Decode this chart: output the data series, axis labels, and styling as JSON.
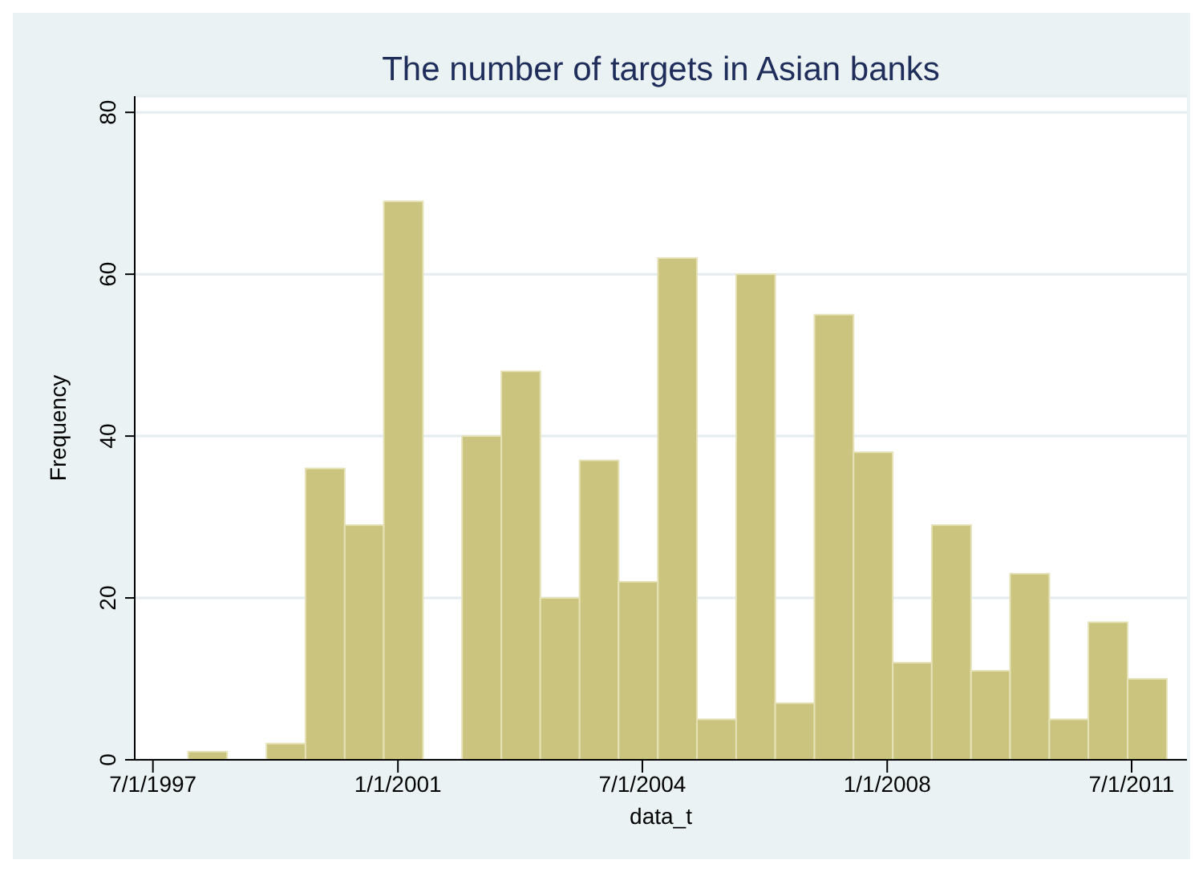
{
  "chart_data": {
    "type": "histogram",
    "title": "The number of targets in Asian banks",
    "xlabel": "data_t",
    "ylabel": "Frequency",
    "bins": [
      "1998-01-01",
      "1998-07-24",
      "1999-02-14",
      "1999-09-06",
      "2000-03-29",
      "2000-10-19",
      "2001-05-12",
      "2001-12-02",
      "2002-06-25",
      "2003-01-15",
      "2003-08-08",
      "2004-02-28",
      "2004-09-20",
      "2005-04-12",
      "2005-11-03",
      "2006-05-26",
      "2006-12-17",
      "2007-07-09",
      "2008-01-30",
      "2008-08-21",
      "2009-03-14",
      "2009-10-04",
      "2010-04-27",
      "2010-11-17",
      "2011-06-10",
      "2012-01-01"
    ],
    "values": [
      1,
      0,
      2,
      36,
      29,
      69,
      0,
      40,
      48,
      20,
      37,
      22,
      62,
      5,
      60,
      7,
      55,
      38,
      12,
      29,
      11,
      23,
      5,
      17,
      10
    ],
    "color": "#cbc47e",
    "xlim": [
      "1997-03-28",
      "2012-04-15"
    ],
    "xticks": [
      {
        "value": "1997-07-01",
        "label": "7/1/1997"
      },
      {
        "value": "2001-01-01",
        "label": "1/1/2001"
      },
      {
        "value": "2004-07-01",
        "label": "7/1/2004"
      },
      {
        "value": "2008-01-01",
        "label": "1/1/2008"
      },
      {
        "value": "2011-07-01",
        "label": "7/1/2011"
      }
    ],
    "ylim": [
      0,
      82
    ],
    "yticks": [
      0,
      20,
      40,
      60,
      80
    ],
    "grid": "y"
  }
}
